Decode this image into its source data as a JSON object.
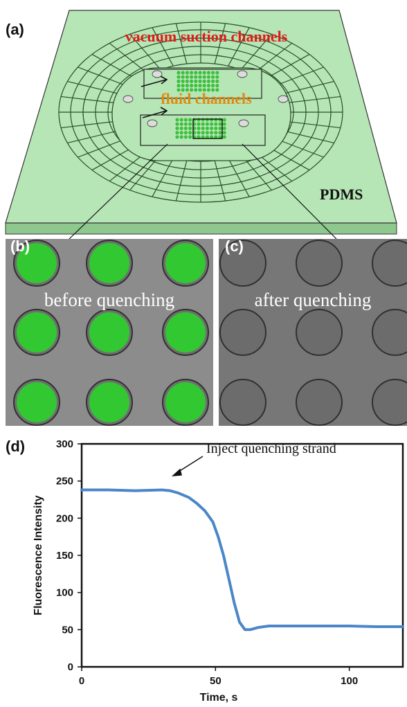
{
  "figure": {
    "panel_a": {
      "label": "(a)",
      "vacuum_label": "vacuum suction channels",
      "fluid_label": "fluid channels",
      "material_label": "PDMS",
      "chip_color": "#b6e6b6",
      "vacuum_color": "#e21a1a",
      "fluid_color": "#e08a10"
    },
    "panel_b": {
      "label": "(b)",
      "caption": "before quenching",
      "spot_color": "#2ad12a"
    },
    "panel_c": {
      "label": "(c)",
      "caption": "after quenching"
    },
    "panel_d": {
      "label": "(d)",
      "annotation": "Inject quenching strand",
      "line_color": "#4a86c8"
    }
  },
  "chart_data": {
    "type": "line",
    "xlabel": "Time, s",
    "ylabel": "Fluorescence Intensity",
    "xlim": [
      0,
      120
    ],
    "ylim": [
      0,
      300
    ],
    "xticks": [
      0,
      50,
      100
    ],
    "yticks": [
      0,
      50,
      100,
      150,
      200,
      250,
      300
    ],
    "grid": false,
    "annotations": [
      {
        "text": "Inject quenching strand",
        "x": 35,
        "y": 238
      }
    ],
    "series": [
      {
        "x": [
          0,
          10,
          20,
          30,
          33,
          36,
          40,
          43,
          46,
          49,
          51,
          53,
          55,
          57,
          59,
          61,
          63,
          66,
          70,
          80,
          90,
          100,
          110,
          120
        ],
        "y": [
          238,
          238,
          237,
          238,
          237,
          234,
          228,
          220,
          210,
          195,
          175,
          150,
          118,
          86,
          60,
          50,
          50,
          53,
          55,
          55,
          55,
          55,
          54,
          54
        ]
      }
    ]
  }
}
